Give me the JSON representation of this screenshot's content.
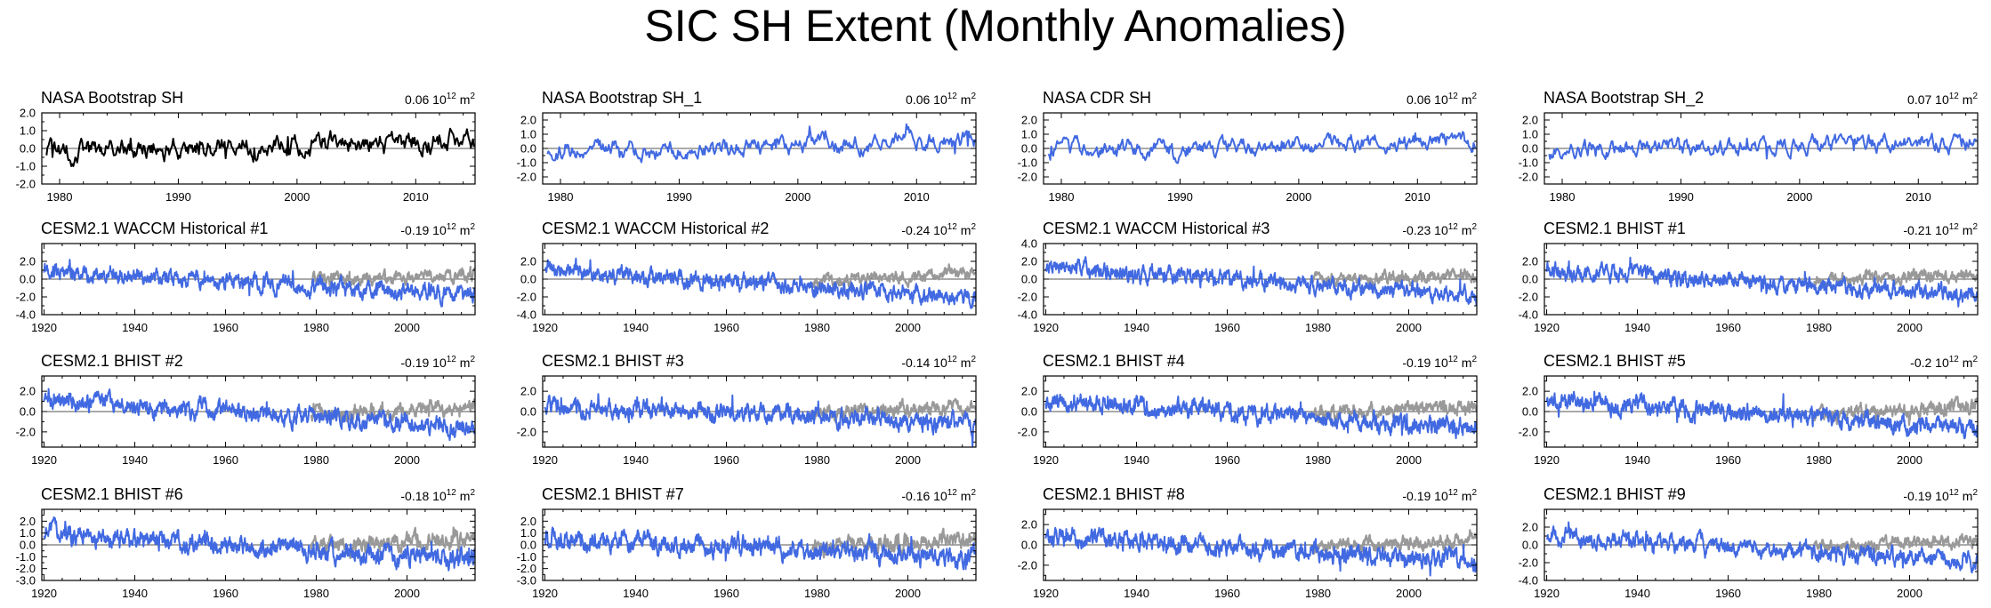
{
  "figure": {
    "title": "SIC SH Extent (Monthly Anomalies)"
  },
  "colors": {
    "obs": "#000000",
    "model": "#4169e1",
    "obs_overlay": "#999999",
    "zero_line": "#555555"
  },
  "chart_data": [
    {
      "type": "line",
      "title": "NASA Bootstrap SH",
      "stat_value": "0.06",
      "stat_unit": "10^12 m^2",
      "xlim": [
        1978.5,
        2015
      ],
      "ylim": [
        -2.0,
        2.0
      ],
      "x_ticks": [
        1980,
        1990,
        2000,
        2010
      ],
      "x_tick_labels": [
        "1980",
        "1990",
        "2000",
        "2010"
      ],
      "y_ticks": [
        2.0,
        1.0,
        0.0,
        -1.0,
        -2.0
      ],
      "y_tick_labels": [
        "2.0",
        "1.0",
        "0.0",
        "-1.0",
        "-2.0"
      ],
      "series": [
        {
          "name": "NASA Bootstrap SH",
          "role": "obs",
          "x_start": 1978.9,
          "x_end": 2014.9,
          "seed": 101,
          "amp": 0.45,
          "trend_start": -0.2,
          "trend_end": 0.5,
          "clip": [
            -1.6,
            1.7
          ]
        }
      ]
    },
    {
      "type": "line",
      "title": "NASA Bootstrap SH_1",
      "stat_value": "0.06",
      "stat_unit": "10^12 m^2",
      "xlim": [
        1978.5,
        2015
      ],
      "ylim": [
        -2.5,
        2.5
      ],
      "x_ticks": [
        1980,
        1990,
        2000,
        2010
      ],
      "x_tick_labels": [
        "1980",
        "1990",
        "2000",
        "2010"
      ],
      "y_ticks": [
        2.0,
        1.0,
        0.0,
        -1.0,
        -2.0
      ],
      "y_tick_labels": [
        "2.0",
        "1.0",
        "0.0",
        "-1.0",
        "-2.0"
      ],
      "series": [
        {
          "name": "NASA Bootstrap SH_1",
          "role": "model",
          "x_start": 1978.9,
          "x_end": 2014.9,
          "seed": 102,
          "amp": 0.45,
          "trend_start": -0.2,
          "trend_end": 0.5,
          "clip": [
            -1.6,
            1.7
          ]
        }
      ]
    },
    {
      "type": "line",
      "title": "NASA CDR SH",
      "stat_value": "0.06",
      "stat_unit": "10^12 m^2",
      "xlim": [
        1978.5,
        2015
      ],
      "ylim": [
        -2.5,
        2.5
      ],
      "x_ticks": [
        1980,
        1990,
        2000,
        2010
      ],
      "x_tick_labels": [
        "1980",
        "1990",
        "2000",
        "2010"
      ],
      "y_ticks": [
        2.0,
        1.0,
        0.0,
        -1.0,
        -2.0
      ],
      "y_tick_labels": [
        "2.0",
        "1.0",
        "0.0",
        "-1.0",
        "-2.0"
      ],
      "series": [
        {
          "name": "NASA CDR SH",
          "role": "model",
          "x_start": 1978.9,
          "x_end": 2014.9,
          "seed": 103,
          "amp": 0.45,
          "trend_start": -0.2,
          "trend_end": 0.5,
          "clip": [
            -1.6,
            1.7
          ]
        }
      ]
    },
    {
      "type": "line",
      "title": "NASA Bootstrap SH_2",
      "stat_value": "0.07",
      "stat_unit": "10^12 m^2",
      "xlim": [
        1978.5,
        2015
      ],
      "ylim": [
        -2.5,
        2.5
      ],
      "x_ticks": [
        1980,
        1990,
        2000,
        2010
      ],
      "x_tick_labels": [
        "1980",
        "1990",
        "2000",
        "2010"
      ],
      "y_ticks": [
        2.0,
        1.0,
        0.0,
        -1.0,
        -2.0
      ],
      "y_tick_labels": [
        "2.0",
        "1.0",
        "0.0",
        "-1.0",
        "-2.0"
      ],
      "series": [
        {
          "name": "NASA Bootstrap SH_2",
          "role": "model",
          "x_start": 1978.9,
          "x_end": 2014.9,
          "seed": 104,
          "amp": 0.45,
          "trend_start": -0.2,
          "trend_end": 0.5,
          "clip": [
            -1.6,
            1.7
          ]
        }
      ]
    },
    {
      "type": "line",
      "title": "CESM2.1 WACCM Historical #1",
      "stat_value": "-0.19",
      "stat_unit": "10^12 m^2",
      "xlim": [
        1919.5,
        2015
      ],
      "ylim": [
        -4.0,
        4.0
      ],
      "x_ticks": [
        1920,
        1940,
        1960,
        1980,
        2000
      ],
      "x_tick_labels": [
        "1920",
        "1940",
        "1960",
        "1980",
        "2000"
      ],
      "y_ticks": [
        2.0,
        0.0,
        -2.0,
        -4.0
      ],
      "y_tick_labels": [
        "2.0",
        "0.0",
        "-2.0",
        "-4.0"
      ],
      "series": [
        {
          "name": "NASA Bootstrap SH",
          "role": "obs_overlay",
          "x_start": 1978.9,
          "x_end": 2014.9,
          "seed": 201,
          "amp": 0.45,
          "trend_start": -0.2,
          "trend_end": 0.5
        },
        {
          "name": "CESM2.1 WACCM Historical #1",
          "role": "model",
          "x_start": 1920,
          "x_end": 2014.9,
          "seed": 301,
          "amp": 0.6,
          "trend_start": 0.9,
          "trend_end": -1.8
        }
      ]
    },
    {
      "type": "line",
      "title": "CESM2.1 WACCM Historical #2",
      "stat_value": "-0.24",
      "stat_unit": "10^12 m^2",
      "xlim": [
        1919.5,
        2015
      ],
      "ylim": [
        -4.0,
        4.0
      ],
      "x_ticks": [
        1920,
        1940,
        1960,
        1980,
        2000
      ],
      "x_tick_labels": [
        "1920",
        "1940",
        "1960",
        "1980",
        "2000"
      ],
      "y_ticks": [
        2.0,
        0.0,
        -2.0,
        -4.0
      ],
      "y_tick_labels": [
        "2.0",
        "0.0",
        "-2.0",
        "-4.0"
      ],
      "series": [
        {
          "name": "NASA Bootstrap SH",
          "role": "obs_overlay",
          "x_start": 1978.9,
          "x_end": 2014.9,
          "seed": 202,
          "amp": 0.45,
          "trend_start": -0.2,
          "trend_end": 0.5
        },
        {
          "name": "CESM2.1 WACCM Historical #2",
          "role": "model",
          "x_start": 1920,
          "x_end": 2014.9,
          "seed": 302,
          "amp": 0.6,
          "trend_start": 1.1,
          "trend_end": -2.2
        }
      ]
    },
    {
      "type": "line",
      "title": "CESM2.1 WACCM Historical #3",
      "stat_value": "-0.23",
      "stat_unit": "10^12 m^2",
      "xlim": [
        1919.5,
        2015
      ],
      "ylim": [
        -4.0,
        4.0
      ],
      "x_ticks": [
        1920,
        1940,
        1960,
        1980,
        2000
      ],
      "x_tick_labels": [
        "1920",
        "1940",
        "1960",
        "1980",
        "2000"
      ],
      "y_ticks": [
        4.0,
        2.0,
        0.0,
        -2.0,
        -4.0
      ],
      "y_tick_labels": [
        "4.0",
        "2.0",
        "0.0",
        "-2.0",
        "-4.0"
      ],
      "series": [
        {
          "name": "NASA Bootstrap SH",
          "role": "obs_overlay",
          "x_start": 1978.9,
          "x_end": 2014.9,
          "seed": 203,
          "amp": 0.45,
          "trend_start": -0.2,
          "trend_end": 0.5
        },
        {
          "name": "CESM2.1 WACCM Historical #3",
          "role": "model",
          "x_start": 1920,
          "x_end": 2014.9,
          "seed": 303,
          "amp": 0.6,
          "trend_start": 1.4,
          "trend_end": -1.9
        }
      ]
    },
    {
      "type": "line",
      "title": "CESM2.1 BHIST #1",
      "stat_value": "-0.21",
      "stat_unit": "10^12 m^2",
      "xlim": [
        1919.5,
        2015
      ],
      "ylim": [
        -4.0,
        4.0
      ],
      "x_ticks": [
        1920,
        1940,
        1960,
        1980,
        2000
      ],
      "x_tick_labels": [
        "1920",
        "1940",
        "1960",
        "1980",
        "2000"
      ],
      "y_ticks": [
        2.0,
        0.0,
        -2.0,
        -4.0
      ],
      "y_tick_labels": [
        "2.0",
        "0.0",
        "-2.0",
        "-4.0"
      ],
      "series": [
        {
          "name": "NASA Bootstrap SH",
          "role": "obs_overlay",
          "x_start": 1978.9,
          "x_end": 2014.9,
          "seed": 204,
          "amp": 0.45,
          "trend_start": -0.2,
          "trend_end": 0.5
        },
        {
          "name": "CESM2.1 BHIST #1",
          "role": "model",
          "x_start": 1920,
          "x_end": 2014.9,
          "seed": 304,
          "amp": 0.6,
          "trend_start": 1.0,
          "trend_end": -1.7
        }
      ]
    },
    {
      "type": "line",
      "title": "CESM2.1 BHIST #2",
      "stat_value": "-0.19",
      "stat_unit": "10^12 m^2",
      "xlim": [
        1919.5,
        2015
      ],
      "ylim": [
        -3.5,
        3.5
      ],
      "x_ticks": [
        1920,
        1940,
        1960,
        1980,
        2000
      ],
      "x_tick_labels": [
        "1920",
        "1940",
        "1960",
        "1980",
        "2000"
      ],
      "y_ticks": [
        2.0,
        0.0,
        -2.0
      ],
      "y_tick_labels": [
        "2.0",
        "0.0",
        "-2.0"
      ],
      "series": [
        {
          "name": "NASA Bootstrap SH",
          "role": "obs_overlay",
          "x_start": 1978.9,
          "x_end": 2014.9,
          "seed": 205,
          "amp": 0.45,
          "trend_start": -0.2,
          "trend_end": 0.5
        },
        {
          "name": "CESM2.1 BHIST #2",
          "role": "model",
          "x_start": 1920,
          "x_end": 2014.9,
          "seed": 305,
          "amp": 0.6,
          "trend_start": 1.2,
          "trend_end": -1.6
        }
      ]
    },
    {
      "type": "line",
      "title": "CESM2.1 BHIST #3",
      "stat_value": "-0.14",
      "stat_unit": "10^12 m^2",
      "xlim": [
        1919.5,
        2015
      ],
      "ylim": [
        -3.5,
        3.5
      ],
      "x_ticks": [
        1920,
        1940,
        1960,
        1980,
        2000
      ],
      "x_tick_labels": [
        "1920",
        "1940",
        "1960",
        "1980",
        "2000"
      ],
      "y_ticks": [
        2.0,
        0.0,
        -2.0
      ],
      "y_tick_labels": [
        "2.0",
        "0.0",
        "-2.0"
      ],
      "series": [
        {
          "name": "NASA Bootstrap SH",
          "role": "obs_overlay",
          "x_start": 1978.9,
          "x_end": 2014.9,
          "seed": 206,
          "amp": 0.45,
          "trend_start": -0.2,
          "trend_end": 0.5
        },
        {
          "name": "CESM2.1 BHIST #3",
          "role": "model",
          "x_start": 1920,
          "x_end": 2014.9,
          "seed": 306,
          "amp": 0.6,
          "trend_start": 0.6,
          "trend_end": -1.2
        }
      ]
    },
    {
      "type": "line",
      "title": "CESM2.1 BHIST #4",
      "stat_value": "-0.19",
      "stat_unit": "10^12 m^2",
      "xlim": [
        1919.5,
        2015
      ],
      "ylim": [
        -3.5,
        3.5
      ],
      "x_ticks": [
        1920,
        1940,
        1960,
        1980,
        2000
      ],
      "x_tick_labels": [
        "1920",
        "1940",
        "1960",
        "1980",
        "2000"
      ],
      "y_ticks": [
        2.0,
        0.0,
        -2.0
      ],
      "y_tick_labels": [
        "2.0",
        "0.0",
        "-2.0"
      ],
      "series": [
        {
          "name": "NASA Bootstrap SH",
          "role": "obs_overlay",
          "x_start": 1978.9,
          "x_end": 2014.9,
          "seed": 207,
          "amp": 0.45,
          "trend_start": -0.2,
          "trend_end": 0.5
        },
        {
          "name": "CESM2.1 BHIST #4",
          "role": "model",
          "x_start": 1920,
          "x_end": 2014.9,
          "seed": 307,
          "amp": 0.6,
          "trend_start": 1.0,
          "trend_end": -1.6
        }
      ]
    },
    {
      "type": "line",
      "title": "CESM2.1 BHIST #5",
      "stat_value": "-0.2",
      "stat_unit": "10^12 m^2",
      "xlim": [
        1919.5,
        2015
      ],
      "ylim": [
        -3.5,
        3.5
      ],
      "x_ticks": [
        1920,
        1940,
        1960,
        1980,
        2000
      ],
      "x_tick_labels": [
        "1920",
        "1940",
        "1960",
        "1980",
        "2000"
      ],
      "y_ticks": [
        2.0,
        0.0,
        -2.0
      ],
      "y_tick_labels": [
        "2.0",
        "0.0",
        "-2.0"
      ],
      "series": [
        {
          "name": "NASA Bootstrap SH",
          "role": "obs_overlay",
          "x_start": 1978.9,
          "x_end": 2014.9,
          "seed": 208,
          "amp": 0.45,
          "trend_start": -0.2,
          "trend_end": 0.5
        },
        {
          "name": "CESM2.1 BHIST #5",
          "role": "model",
          "x_start": 1920,
          "x_end": 2014.9,
          "seed": 308,
          "amp": 0.6,
          "trend_start": 1.1,
          "trend_end": -1.6
        }
      ]
    },
    {
      "type": "line",
      "title": "CESM2.1 BHIST #6",
      "stat_value": "-0.18",
      "stat_unit": "10^12 m^2",
      "xlim": [
        1919.5,
        2015
      ],
      "ylim": [
        -3.0,
        3.0
      ],
      "x_ticks": [
        1920,
        1940,
        1960,
        1980,
        2000
      ],
      "x_tick_labels": [
        "1920",
        "1940",
        "1960",
        "1980",
        "2000"
      ],
      "y_ticks": [
        2.0,
        1.0,
        0.0,
        -1.0,
        -2.0,
        -3.0
      ],
      "y_tick_labels": [
        "2.0",
        "1.0",
        "0.0",
        "-1.0",
        "-2.0",
        "-3.0"
      ],
      "series": [
        {
          "name": "NASA Bootstrap SH",
          "role": "obs_overlay",
          "x_start": 1978.9,
          "x_end": 2014.9,
          "seed": 209,
          "amp": 0.45,
          "trend_start": -0.2,
          "trend_end": 0.5
        },
        {
          "name": "CESM2.1 BHIST #6",
          "role": "model",
          "x_start": 1920,
          "x_end": 2014.9,
          "seed": 309,
          "amp": 0.55,
          "trend_start": 0.9,
          "trend_end": -1.3
        }
      ]
    },
    {
      "type": "line",
      "title": "CESM2.1 BHIST #7",
      "stat_value": "-0.16",
      "stat_unit": "10^12 m^2",
      "xlim": [
        1919.5,
        2015
      ],
      "ylim": [
        -3.0,
        3.0
      ],
      "x_ticks": [
        1920,
        1940,
        1960,
        1980,
        2000
      ],
      "x_tick_labels": [
        "1920",
        "1940",
        "1960",
        "1980",
        "2000"
      ],
      "y_ticks": [
        2.0,
        1.0,
        0.0,
        -1.0,
        -2.0,
        -3.0
      ],
      "y_tick_labels": [
        "2.0",
        "1.0",
        "0.0",
        "-1.0",
        "-2.0",
        "-3.0"
      ],
      "series": [
        {
          "name": "NASA Bootstrap SH",
          "role": "obs_overlay",
          "x_start": 1978.9,
          "x_end": 2014.9,
          "seed": 210,
          "amp": 0.45,
          "trend_start": -0.2,
          "trend_end": 0.5
        },
        {
          "name": "CESM2.1 BHIST #7",
          "role": "model",
          "x_start": 1920,
          "x_end": 2014.9,
          "seed": 310,
          "amp": 0.55,
          "trend_start": 0.6,
          "trend_end": -1.2
        }
      ]
    },
    {
      "type": "line",
      "title": "CESM2.1 BHIST #8",
      "stat_value": "-0.19",
      "stat_unit": "10^12 m^2",
      "xlim": [
        1919.5,
        2015
      ],
      "ylim": [
        -3.5,
        3.5
      ],
      "x_ticks": [
        1920,
        1940,
        1960,
        1980,
        2000
      ],
      "x_tick_labels": [
        "1920",
        "1940",
        "1960",
        "1980",
        "2000"
      ],
      "y_ticks": [
        2.0,
        0.0,
        -2.0
      ],
      "y_tick_labels": [
        "2.0",
        "0.0",
        "-2.0"
      ],
      "series": [
        {
          "name": "NASA Bootstrap SH",
          "role": "obs_overlay",
          "x_start": 1978.9,
          "x_end": 2014.9,
          "seed": 211,
          "amp": 0.45,
          "trend_start": -0.2,
          "trend_end": 0.5
        },
        {
          "name": "CESM2.1 BHIST #8",
          "role": "model",
          "x_start": 1920,
          "x_end": 2014.9,
          "seed": 311,
          "amp": 0.6,
          "trend_start": 0.8,
          "trend_end": -1.7
        }
      ]
    },
    {
      "type": "line",
      "title": "CESM2.1 BHIST #9",
      "stat_value": "-0.19",
      "stat_unit": "10^12 m^2",
      "xlim": [
        1919.5,
        2015
      ],
      "ylim": [
        -4.0,
        4.0
      ],
      "x_ticks": [
        1920,
        1940,
        1960,
        1980,
        2000
      ],
      "x_tick_labels": [
        "1920",
        "1940",
        "1960",
        "1980",
        "2000"
      ],
      "y_ticks": [
        2.0,
        0.0,
        -2.0,
        -4.0
      ],
      "y_tick_labels": [
        "2.0",
        "0.0",
        "-2.0",
        "-4.0"
      ],
      "series": [
        {
          "name": "NASA Bootstrap SH",
          "role": "obs_overlay",
          "x_start": 1978.9,
          "x_end": 2014.9,
          "seed": 212,
          "amp": 0.45,
          "trend_start": -0.2,
          "trend_end": 0.5
        },
        {
          "name": "CESM2.1 BHIST #9",
          "role": "model",
          "x_start": 1920,
          "x_end": 2014.9,
          "seed": 312,
          "amp": 0.6,
          "trend_start": 1.0,
          "trend_end": -1.8
        }
      ]
    }
  ]
}
